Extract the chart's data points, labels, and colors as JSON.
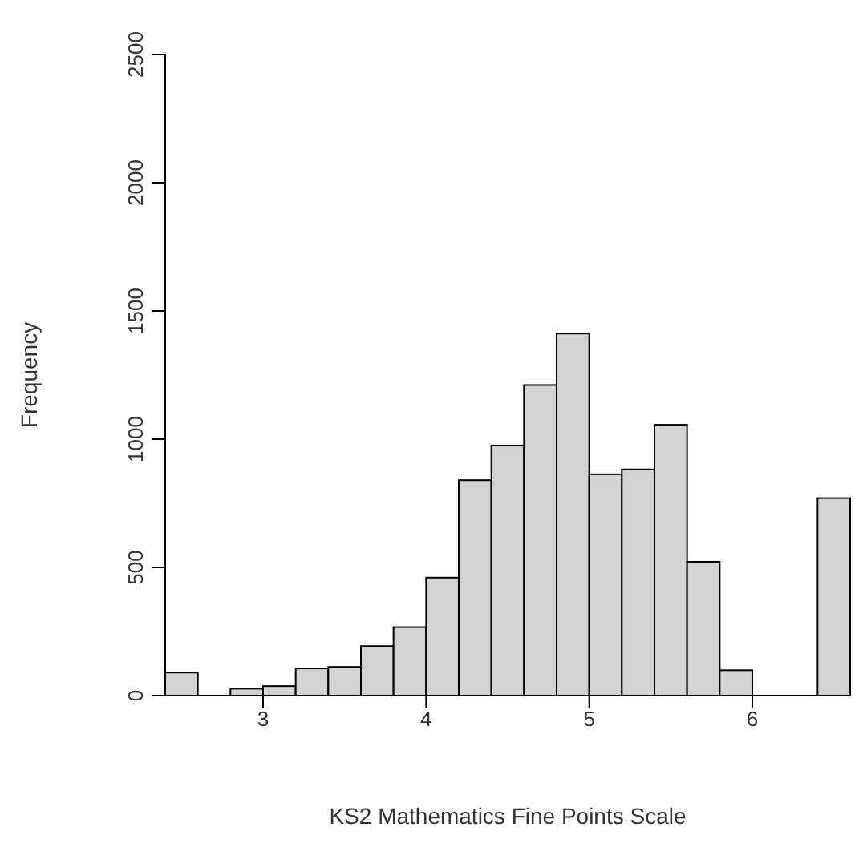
{
  "chart_data": {
    "type": "histogram",
    "xlabel": "KS2 Mathematics Fine Points Scale",
    "ylabel": "Frequency",
    "bins": [
      2.4,
      2.6,
      2.8,
      3.0,
      3.2,
      3.4,
      3.6,
      3.8,
      4.0,
      4.2,
      4.4,
      4.6,
      4.8,
      5.0,
      5.2,
      5.4,
      5.6,
      5.8,
      6.0,
      6.2,
      6.4,
      6.6
    ],
    "values": [
      90,
      0,
      27,
      37,
      106,
      112,
      193,
      267,
      460,
      840,
      975,
      1211,
      1412,
      863,
      882,
      1056,
      522,
      99,
      0,
      0,
      770
    ],
    "color": "#d3d3d3",
    "xlim": [
      2.4,
      6.6
    ],
    "xticks": [
      3,
      4,
      5,
      6
    ],
    "ylim": [
      0,
      2500
    ],
    "yticks": [
      0,
      500,
      1000,
      1500,
      2000,
      2500
    ]
  }
}
